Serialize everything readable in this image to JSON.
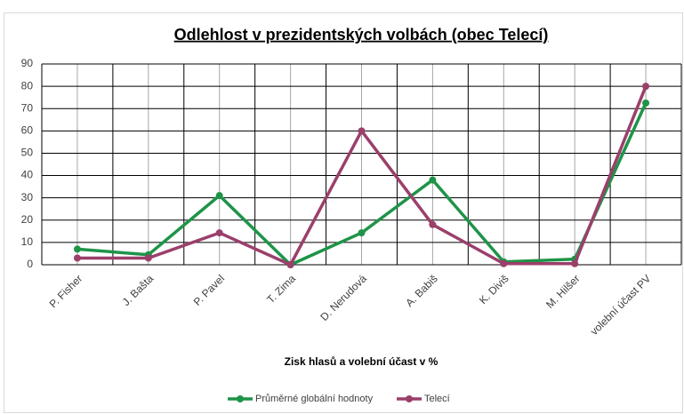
{
  "chart_data": {
    "type": "line",
    "title": "Odlehlost v prezidentských volbách (obec Telecí)",
    "x_label": "Zisk hlasů a volební účast v %",
    "categories": [
      "P. Fisher",
      "J. Bašta",
      "P. Pavel",
      "T. Zima",
      "D. Nerudová",
      "A. Babiš",
      "K. Diviš",
      "M. Hilšer",
      "volební účast PV"
    ],
    "series": [
      {
        "name": "Průměrné globální hodnoty",
        "color": "#1e9448",
        "values": [
          7,
          4.5,
          31,
          0,
          14.3,
          38,
          1.3,
          2.5,
          72.5
        ]
      },
      {
        "name": "Telecí",
        "color": "#9b3f6b",
        "values": [
          3,
          3,
          14.3,
          0,
          60,
          18,
          0.5,
          0.5,
          80
        ]
      }
    ],
    "ylim": [
      0,
      90
    ],
    "yticks": [
      0,
      10,
      20,
      30,
      40,
      50,
      60,
      70,
      80,
      90
    ],
    "grid": true,
    "legend": "bottom"
  }
}
